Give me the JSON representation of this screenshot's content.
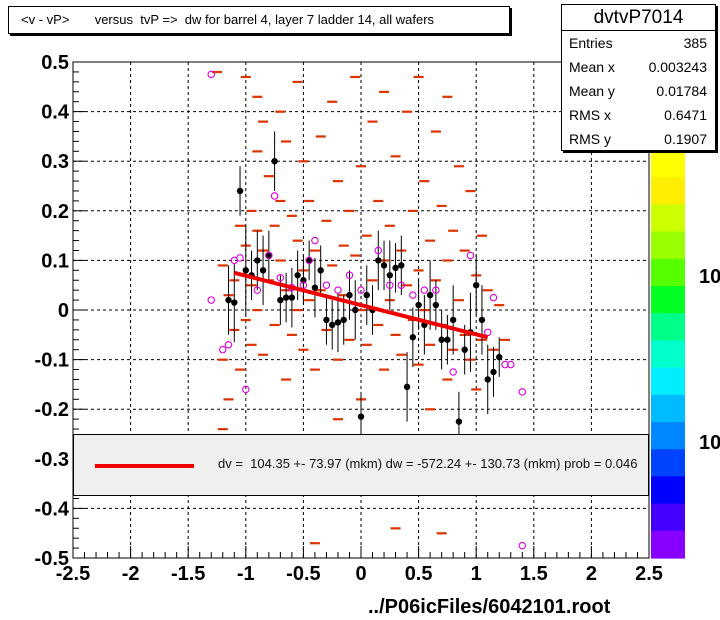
{
  "title": "<v - vP>       versus  tvP =>  dw for barrel 4, layer 7 ladder 14, all wafers",
  "stats": {
    "name": "dvtvP7014",
    "rows": [
      {
        "label": "Entries",
        "value": "385"
      },
      {
        "label": "Mean x",
        "value": "0.003243"
      },
      {
        "label": "Mean y",
        "value": "0.01784"
      },
      {
        "label": "RMS x",
        "value": "0.6471"
      },
      {
        "label": "RMS y",
        "value": "0.1907"
      }
    ]
  },
  "fit_legend": "dv =  104.35 +- 73.97 (mkm) dw = -572.24 +- 130.73 (mkm) prob = 0.046",
  "footer": "../P06icFiles/6042101.root",
  "palette_labels": [
    "10",
    "10"
  ],
  "colors": {
    "fit_line": "#ee0000",
    "hist_bins": "#dd3300",
    "profile_points": "#000000",
    "open_points": "#dd00dd"
  },
  "chart_data": {
    "type": "scatter",
    "title": "<v - vP>       versus  tvP =>  dw for barrel 4, layer 7 ladder 14, all wafers",
    "xlabel": "",
    "ylabel": "",
    "xlim": [
      -2.5,
      2.5
    ],
    "ylim": [
      -0.5,
      0.5
    ],
    "x_ticks": [
      "-2.5",
      "-2",
      "-1.5",
      "-1",
      "-0.5",
      "0",
      "0.5",
      "1",
      "1.5",
      "2",
      "2.5"
    ],
    "y_ticks": [
      "-0.5",
      "-0.4",
      "-0.3",
      "-0.2",
      "-0.1",
      "0",
      "0.1",
      "0.2",
      "0.3",
      "0.4",
      "0.5"
    ],
    "grid": true,
    "fit_line": {
      "x": [
        -1.1,
        1.1
      ],
      "y": [
        0.075,
        -0.055
      ]
    },
    "profile_points": [
      {
        "x": -1.15,
        "y": 0.02,
        "err": 0.07
      },
      {
        "x": -1.1,
        "y": 0.015,
        "err": 0.08
      },
      {
        "x": -1.05,
        "y": 0.24,
        "err": 0.05
      },
      {
        "x": -1.0,
        "y": 0.08,
        "err": 0.09
      },
      {
        "x": -0.95,
        "y": 0.07,
        "err": 0.05
      },
      {
        "x": -0.9,
        "y": 0.1,
        "err": 0.06
      },
      {
        "x": -0.85,
        "y": 0.08,
        "err": 0.07
      },
      {
        "x": -0.8,
        "y": 0.11,
        "err": 0.05
      },
      {
        "x": -0.75,
        "y": 0.3,
        "err": 0.06
      },
      {
        "x": -0.7,
        "y": 0.02,
        "err": 0.05
      },
      {
        "x": -0.65,
        "y": 0.025,
        "err": 0.05
      },
      {
        "x": -0.6,
        "y": 0.025,
        "err": 0.06
      },
      {
        "x": -0.55,
        "y": 0.07,
        "err": 0.05
      },
      {
        "x": -0.5,
        "y": 0.06,
        "err": 0.05
      },
      {
        "x": -0.45,
        "y": 0.1,
        "err": 0.04
      },
      {
        "x": -0.4,
        "y": 0.045,
        "err": 0.06
      },
      {
        "x": -0.35,
        "y": 0.08,
        "err": 0.05
      },
      {
        "x": -0.3,
        "y": -0.02,
        "err": 0.05
      },
      {
        "x": -0.25,
        "y": -0.03,
        "err": 0.05
      },
      {
        "x": -0.2,
        "y": -0.025,
        "err": 0.06
      },
      {
        "x": -0.15,
        "y": -0.02,
        "err": 0.05
      },
      {
        "x": -0.1,
        "y": 0.03,
        "err": 0.05
      },
      {
        "x": -0.05,
        "y": 0.0,
        "err": 0.06
      },
      {
        "x": 0.0,
        "y": -0.215,
        "err": 0.05
      },
      {
        "x": 0.05,
        "y": 0.03,
        "err": 0.06
      },
      {
        "x": 0.1,
        "y": 0.0,
        "err": 0.05
      },
      {
        "x": 0.15,
        "y": 0.1,
        "err": 0.06
      },
      {
        "x": 0.2,
        "y": 0.09,
        "err": 0.05
      },
      {
        "x": 0.25,
        "y": 0.07,
        "err": 0.07
      },
      {
        "x": 0.3,
        "y": 0.085,
        "err": 0.05
      },
      {
        "x": 0.35,
        "y": 0.09,
        "err": 0.06
      },
      {
        "x": 0.4,
        "y": -0.155,
        "err": 0.07
      },
      {
        "x": 0.45,
        "y": -0.055,
        "err": 0.06
      },
      {
        "x": 0.5,
        "y": 0.01,
        "err": 0.05
      },
      {
        "x": 0.55,
        "y": -0.03,
        "err": 0.06
      },
      {
        "x": 0.6,
        "y": 0.03,
        "err": 0.07
      },
      {
        "x": 0.65,
        "y": 0.01,
        "err": 0.05
      },
      {
        "x": 0.7,
        "y": -0.06,
        "err": 0.06
      },
      {
        "x": 0.75,
        "y": -0.06,
        "err": 0.05
      },
      {
        "x": 0.8,
        "y": -0.02,
        "err": 0.07
      },
      {
        "x": 0.85,
        "y": -0.225,
        "err": 0.06
      },
      {
        "x": 0.9,
        "y": -0.08,
        "err": 0.05
      },
      {
        "x": 0.95,
        "y": -0.045,
        "err": 0.08
      },
      {
        "x": 1.0,
        "y": 0.05,
        "err": 0.06
      },
      {
        "x": 1.05,
        "y": -0.02,
        "err": 0.07
      },
      {
        "x": 1.1,
        "y": -0.14,
        "err": 0.07
      },
      {
        "x": 1.15,
        "y": -0.125,
        "err": 0.05
      },
      {
        "x": 1.2,
        "y": -0.095,
        "err": 0.04
      }
    ],
    "open_points": [
      {
        "x": -1.3,
        "y": 0.475
      },
      {
        "x": -1.3,
        "y": 0.02
      },
      {
        "x": -1.2,
        "y": -0.08
      },
      {
        "x": -1.15,
        "y": -0.07
      },
      {
        "x": -1.1,
        "y": 0.1
      },
      {
        "x": -1.05,
        "y": 0.105
      },
      {
        "x": -1.0,
        "y": -0.16
      },
      {
        "x": -0.9,
        "y": 0.04
      },
      {
        "x": -0.8,
        "y": 0.11
      },
      {
        "x": -0.75,
        "y": 0.23
      },
      {
        "x": -0.7,
        "y": 0.065
      },
      {
        "x": -0.6,
        "y": 0.045
      },
      {
        "x": -0.5,
        "y": 0.05
      },
      {
        "x": -0.45,
        "y": 0.1
      },
      {
        "x": -0.4,
        "y": 0.14
      },
      {
        "x": -0.3,
        "y": 0.05
      },
      {
        "x": -0.2,
        "y": 0.04
      },
      {
        "x": -0.1,
        "y": 0.07
      },
      {
        "x": 0.0,
        "y": 0.04
      },
      {
        "x": 0.15,
        "y": 0.12
      },
      {
        "x": 0.25,
        "y": 0.05
      },
      {
        "x": 0.35,
        "y": 0.05
      },
      {
        "x": 0.45,
        "y": 0.03
      },
      {
        "x": 0.55,
        "y": 0.04
      },
      {
        "x": 0.65,
        "y": 0.04
      },
      {
        "x": 0.8,
        "y": -0.125
      },
      {
        "x": 0.95,
        "y": 0.11
      },
      {
        "x": 1.1,
        "y": -0.045
      },
      {
        "x": 1.15,
        "y": 0.025
      },
      {
        "x": 1.25,
        "y": -0.11
      },
      {
        "x": 1.3,
        "y": -0.11
      },
      {
        "x": 1.4,
        "y": -0.165
      },
      {
        "x": 1.4,
        "y": -0.475
      }
    ],
    "hist_bins": [
      {
        "x": -1.25,
        "y": 0.48
      },
      {
        "x": -1.2,
        "y": 0.09
      },
      {
        "x": -1.2,
        "y": -0.1
      },
      {
        "x": -1.15,
        "y": 0.03
      },
      {
        "x": -1.1,
        "y": 0.06
      },
      {
        "x": -1.1,
        "y": -0.04
      },
      {
        "x": -1.05,
        "y": 0.17
      },
      {
        "x": -1.05,
        "y": -0.12
      },
      {
        "x": -1.0,
        "y": 0.47
      },
      {
        "x": -1.0,
        "y": 0.13
      },
      {
        "x": -1.0,
        "y": -0.02
      },
      {
        "x": -0.95,
        "y": 0.2
      },
      {
        "x": -0.95,
        "y": 0.05
      },
      {
        "x": -0.95,
        "y": -0.07
      },
      {
        "x": -0.9,
        "y": 0.43
      },
      {
        "x": -0.9,
        "y": 0.32
      },
      {
        "x": -0.9,
        "y": 0.16
      },
      {
        "x": -0.9,
        "y": 0.0
      },
      {
        "x": -0.85,
        "y": 0.38
      },
      {
        "x": -0.85,
        "y": 0.12
      },
      {
        "x": -0.85,
        "y": -0.09
      },
      {
        "x": -0.8,
        "y": 0.27
      },
      {
        "x": -0.8,
        "y": 0.06
      },
      {
        "x": -0.75,
        "y": 0.17
      },
      {
        "x": -0.75,
        "y": -0.03
      },
      {
        "x": -0.7,
        "y": 0.4
      },
      {
        "x": -0.7,
        "y": 0.22
      },
      {
        "x": -0.7,
        "y": 0.1
      },
      {
        "x": -0.65,
        "y": 0.34
      },
      {
        "x": -0.65,
        "y": 0.04
      },
      {
        "x": -0.65,
        "y": -0.14
      },
      {
        "x": -0.6,
        "y": 0.19
      },
      {
        "x": -0.6,
        "y": -0.05
      },
      {
        "x": -0.55,
        "y": 0.46
      },
      {
        "x": -0.55,
        "y": 0.14
      },
      {
        "x": -0.55,
        "y": 0.0
      },
      {
        "x": -0.5,
        "y": 0.3
      },
      {
        "x": -0.5,
        "y": 0.08
      },
      {
        "x": -0.5,
        "y": -0.08
      },
      {
        "x": -0.45,
        "y": 0.22
      },
      {
        "x": -0.45,
        "y": 0.02
      },
      {
        "x": -0.4,
        "y": 0.12
      },
      {
        "x": -0.4,
        "y": -0.12
      },
      {
        "x": -0.35,
        "y": 0.35
      },
      {
        "x": -0.35,
        "y": 0.04
      },
      {
        "x": -0.3,
        "y": 0.18
      },
      {
        "x": -0.3,
        "y": -0.04
      },
      {
        "x": -0.25,
        "y": 0.42
      },
      {
        "x": -0.25,
        "y": 0.09
      },
      {
        "x": -0.2,
        "y": 0.26
      },
      {
        "x": -0.2,
        "y": -0.1
      },
      {
        "x": -0.15,
        "y": 0.13
      },
      {
        "x": -0.15,
        "y": 0.03
      },
      {
        "x": -0.1,
        "y": 0.2
      },
      {
        "x": -0.1,
        "y": -0.06
      },
      {
        "x": -0.05,
        "y": 0.47
      },
      {
        "x": -0.05,
        "y": 0.11
      },
      {
        "x": 0.0,
        "y": 0.29
      },
      {
        "x": 0.0,
        "y": 0.0
      },
      {
        "x": 0.0,
        "y": -0.18
      },
      {
        "x": 0.05,
        "y": 0.15
      },
      {
        "x": 0.05,
        "y": -0.07
      },
      {
        "x": 0.1,
        "y": 0.38
      },
      {
        "x": 0.1,
        "y": 0.06
      },
      {
        "x": 0.15,
        "y": 0.22
      },
      {
        "x": 0.15,
        "y": -0.03
      },
      {
        "x": 0.2,
        "y": 0.44
      },
      {
        "x": 0.2,
        "y": 0.1
      },
      {
        "x": 0.2,
        "y": -0.12
      },
      {
        "x": 0.25,
        "y": 0.17
      },
      {
        "x": 0.25,
        "y": 0.02
      },
      {
        "x": 0.3,
        "y": 0.31
      },
      {
        "x": 0.3,
        "y": -0.05
      },
      {
        "x": 0.35,
        "y": 0.12
      },
      {
        "x": 0.35,
        "y": -0.09
      },
      {
        "x": 0.4,
        "y": 0.4
      },
      {
        "x": 0.4,
        "y": 0.05
      },
      {
        "x": 0.45,
        "y": 0.2
      },
      {
        "x": 0.45,
        "y": -0.02
      },
      {
        "x": 0.5,
        "y": 0.47
      },
      {
        "x": 0.5,
        "y": 0.08
      },
      {
        "x": 0.5,
        "y": -0.11
      },
      {
        "x": 0.55,
        "y": 0.26
      },
      {
        "x": 0.55,
        "y": 0.0
      },
      {
        "x": 0.6,
        "y": 0.14
      },
      {
        "x": 0.6,
        "y": -0.07
      },
      {
        "x": 0.65,
        "y": 0.36
      },
      {
        "x": 0.65,
        "y": 0.06
      },
      {
        "x": 0.7,
        "y": 0.21
      },
      {
        "x": 0.7,
        "y": -0.03
      },
      {
        "x": 0.75,
        "y": 0.43
      },
      {
        "x": 0.75,
        "y": 0.1
      },
      {
        "x": 0.75,
        "y": -0.14
      },
      {
        "x": 0.8,
        "y": 0.16
      },
      {
        "x": 0.8,
        "y": -0.08
      },
      {
        "x": 0.85,
        "y": 0.29
      },
      {
        "x": 0.85,
        "y": 0.02
      },
      {
        "x": 0.9,
        "y": 0.12
      },
      {
        "x": 0.9,
        "y": -0.05
      },
      {
        "x": 0.95,
        "y": 0.24
      },
      {
        "x": 0.95,
        "y": -0.1
      },
      {
        "x": 1.0,
        "y": 0.07
      },
      {
        "x": 1.0,
        "y": -0.16
      },
      {
        "x": 1.05,
        "y": 0.15
      },
      {
        "x": 1.05,
        "y": -0.06
      },
      {
        "x": 1.1,
        "y": 0.04
      },
      {
        "x": 1.15,
        "y": -0.08
      },
      {
        "x": 1.2,
        "y": 0.01
      },
      {
        "x": 1.25,
        "y": -0.06
      },
      {
        "x": 0.7,
        "y": -0.45
      },
      {
        "x": -0.4,
        "y": -0.47
      },
      {
        "x": 0.3,
        "y": -0.44
      },
      {
        "x": -1.15,
        "y": -0.18
      },
      {
        "x": -0.2,
        "y": -0.22
      },
      {
        "x": 0.6,
        "y": -0.2
      },
      {
        "x": -1.2,
        "y": -0.24
      }
    ]
  }
}
